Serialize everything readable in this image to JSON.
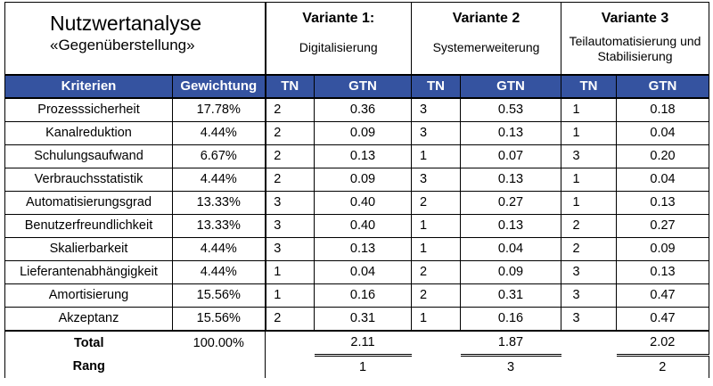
{
  "title": {
    "main": "Nutzwertanalyse",
    "sub": "«Gegenüberstellung»"
  },
  "variants": [
    {
      "name": "Variante 1:",
      "desc": "Digitalisierung"
    },
    {
      "name": "Variante 2",
      "desc": "Systemerweiterung"
    },
    {
      "name": "Variante 3",
      "desc": "Teilautomatisierung und Stabilisierung"
    }
  ],
  "header": {
    "criteria": "Kriterien",
    "weight": "Gewichtung",
    "tn": "TN",
    "gtn": "GTN"
  },
  "rows": [
    {
      "crit": "Prozesssicherheit",
      "weight": "17.78%",
      "v": [
        [
          "2",
          "0.36"
        ],
        [
          "3",
          "0.53"
        ],
        [
          "1",
          "0.18"
        ]
      ]
    },
    {
      "crit": "Kanalreduktion",
      "weight": "4.44%",
      "v": [
        [
          "2",
          "0.09"
        ],
        [
          "3",
          "0.13"
        ],
        [
          "1",
          "0.04"
        ]
      ]
    },
    {
      "crit": "Schulungsaufwand",
      "weight": "6.67%",
      "v": [
        [
          "2",
          "0.13"
        ],
        [
          "1",
          "0.07"
        ],
        [
          "3",
          "0.20"
        ]
      ]
    },
    {
      "crit": "Verbrauchsstatistik",
      "weight": "4.44%",
      "v": [
        [
          "2",
          "0.09"
        ],
        [
          "3",
          "0.13"
        ],
        [
          "1",
          "0.04"
        ]
      ]
    },
    {
      "crit": "Automatisierungsgrad",
      "weight": "13.33%",
      "v": [
        [
          "3",
          "0.40"
        ],
        [
          "2",
          "0.27"
        ],
        [
          "1",
          "0.13"
        ]
      ]
    },
    {
      "crit": "Benutzerfreundlichkeit",
      "weight": "13.33%",
      "v": [
        [
          "3",
          "0.40"
        ],
        [
          "1",
          "0.13"
        ],
        [
          "2",
          "0.27"
        ]
      ]
    },
    {
      "crit": "Skalierbarkeit",
      "weight": "4.44%",
      "v": [
        [
          "3",
          "0.13"
        ],
        [
          "1",
          "0.04"
        ],
        [
          "2",
          "0.09"
        ]
      ]
    },
    {
      "crit": "Lieferantenabhängigkeit",
      "weight": "4.44%",
      "v": [
        [
          "1",
          "0.04"
        ],
        [
          "2",
          "0.09"
        ],
        [
          "3",
          "0.13"
        ]
      ]
    },
    {
      "crit": "Amortisierung",
      "weight": "15.56%",
      "v": [
        [
          "1",
          "0.16"
        ],
        [
          "2",
          "0.31"
        ],
        [
          "3",
          "0.47"
        ]
      ]
    },
    {
      "crit": "Akzeptanz",
      "weight": "15.56%",
      "v": [
        [
          "2",
          "0.31"
        ],
        [
          "1",
          "0.16"
        ],
        [
          "3",
          "0.47"
        ]
      ]
    }
  ],
  "total": {
    "label": "Total",
    "weight": "100.00%",
    "values": [
      "2.11",
      "1.87",
      "2.02"
    ]
  },
  "rang": {
    "label": "Rang",
    "values": [
      "1",
      "3",
      "2"
    ]
  },
  "colors": {
    "header_bg": "#3553a0",
    "header_text": "#ffffff"
  }
}
